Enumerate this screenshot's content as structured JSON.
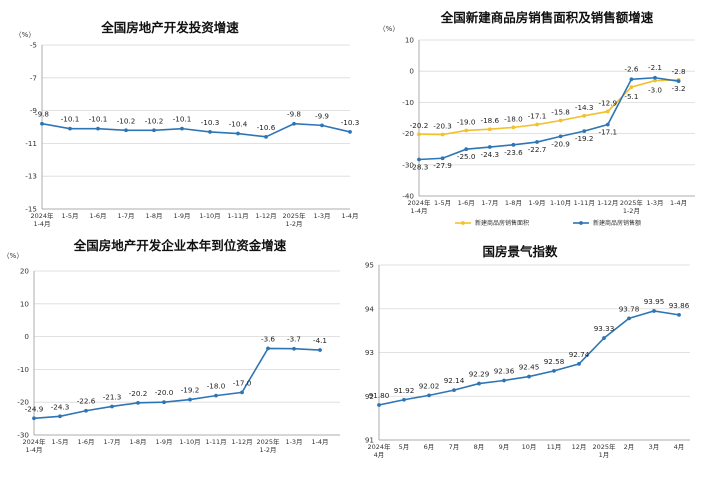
{
  "chart_data": [
    {
      "type": "line",
      "title": "全国房地产开发投资增速",
      "unit": "（%）",
      "categories": [
        [
          "2024年",
          "1-4月"
        ],
        [
          "1-5月"
        ],
        [
          "1-6月"
        ],
        [
          "1-7月"
        ],
        [
          "1-8月"
        ],
        [
          "1-9月"
        ],
        [
          "1-10月"
        ],
        [
          "1-11月"
        ],
        [
          "1-12月"
        ],
        [
          "2025年",
          "1-2月"
        ],
        [
          "1-3月"
        ],
        [
          "1-4月"
        ]
      ],
      "series": [
        {
          "values": [
            -9.8,
            -10.1,
            -10.1,
            -10.2,
            -10.2,
            -10.1,
            -10.3,
            -10.4,
            -10.6,
            -9.8,
            -9.9,
            -10.3
          ],
          "labels": [
            "-9.8",
            "-10.1",
            "-10.1",
            "-10.2",
            "-10.2",
            "-10.1",
            "-10.3",
            "-10.4",
            "-10.6",
            "-9.8",
            "-9.9",
            "-10.3"
          ],
          "color": "#2e75b6"
        }
      ],
      "yticks": [
        "-5",
        "-7",
        "-9",
        "-11",
        "-13",
        "-15"
      ],
      "ylim": [
        -15,
        -5
      ],
      "grid": true
    },
    {
      "type": "line",
      "title": "全国新建商品房销售面积及销售额增速",
      "unit": "（%）",
      "categories": [
        [
          "2024年",
          "1-4月"
        ],
        [
          "1-5月"
        ],
        [
          "1-6月"
        ],
        [
          "1-7月"
        ],
        [
          "1-8月"
        ],
        [
          "1-9月"
        ],
        [
          "1-10月"
        ],
        [
          "1-11月"
        ],
        [
          "1-12月"
        ],
        [
          "2025年",
          "1-2月"
        ],
        [
          "1-3月"
        ],
        [
          "1-4月"
        ]
      ],
      "series": [
        {
          "name": "新建商品房销售面积",
          "values": [
            -20.2,
            -20.3,
            -19.0,
            -18.6,
            -18.0,
            -17.1,
            -15.8,
            -14.3,
            -12.9,
            -5.1,
            -3.0,
            -2.8
          ],
          "labels": [
            "-20.2",
            "-20.3",
            "-19.0",
            "-18.6",
            "-18.0",
            "-17.1",
            "-15.8",
            "-14.3",
            "-12.9",
            "-5.1",
            "-3.0",
            "-2.8"
          ],
          "color": "#f2c12e"
        },
        {
          "name": "新建商品房销售额",
          "values": [
            -28.3,
            -27.9,
            -25.0,
            -24.3,
            -23.6,
            -22.7,
            -20.9,
            -19.2,
            -17.1,
            -2.6,
            -2.1,
            -3.2
          ],
          "labels": [
            "-28.3",
            "-27.9",
            "-25.0",
            "-24.3",
            "-23.6",
            "-22.7",
            "-20.9",
            "-19.2",
            "-17.1",
            "-2.6",
            "-2.1",
            "-3.2"
          ],
          "color": "#2e75b6"
        }
      ],
      "yticks": [
        "10",
        "0",
        "-10",
        "-20",
        "-30",
        "-40"
      ],
      "ylim": [
        -40,
        10
      ],
      "legend": "bottom",
      "grid": true
    },
    {
      "type": "line",
      "title": "全国房地产开发企业本年到位资金增速",
      "unit": "（%）",
      "categories": [
        [
          "2024年",
          "1-4月"
        ],
        [
          "1-5月"
        ],
        [
          "1-6月"
        ],
        [
          "1-7月"
        ],
        [
          "1-8月"
        ],
        [
          "1-9月"
        ],
        [
          "1-10月"
        ],
        [
          "1-11月"
        ],
        [
          "1-12月"
        ],
        [
          "2025年",
          "1-2月"
        ],
        [
          "1-3月"
        ],
        [
          "1-4月"
        ]
      ],
      "series": [
        {
          "values": [
            -24.9,
            -24.3,
            -22.6,
            -21.3,
            -20.2,
            -20.0,
            -19.2,
            -18.0,
            -17.0,
            -3.6,
            -3.7,
            -4.1
          ],
          "labels": [
            "-24.9",
            "-24.3",
            "-22.6",
            "-21.3",
            "-20.2",
            "-20.0",
            "-19.2",
            "-18.0",
            "-17.0",
            "-3.6",
            "-3.7",
            "-4.1"
          ],
          "color": "#2e75b6"
        }
      ],
      "yticks": [
        "20",
        "10",
        "0",
        "-10",
        "-20",
        "-30"
      ],
      "ylim": [
        -30,
        20
      ],
      "grid": true
    },
    {
      "type": "line",
      "title": "国房景气指数",
      "categories": [
        [
          "2024年",
          "4月"
        ],
        [
          "5月"
        ],
        [
          "6月"
        ],
        [
          "7月"
        ],
        [
          "8月"
        ],
        [
          "9月"
        ],
        [
          "10月"
        ],
        [
          "11月"
        ],
        [
          "12月"
        ],
        [
          "2025年",
          "1月"
        ],
        [
          "2月"
        ],
        [
          "3月"
        ],
        [
          "4月"
        ]
      ],
      "series": [
        {
          "values": [
            91.8,
            91.92,
            92.02,
            92.14,
            92.29,
            92.36,
            92.45,
            92.58,
            92.74,
            93.33,
            93.78,
            93.95,
            93.86
          ],
          "labels": [
            "91.80",
            "91.92",
            "92.02",
            "92.14",
            "92.29",
            "92.36",
            "92.45",
            "92.58",
            "92.74",
            "93.33",
            "93.78",
            "93.95",
            "93.86"
          ],
          "color": "#2e75b6"
        }
      ],
      "yticks": [
        "95",
        "94",
        "93",
        "92",
        "91"
      ],
      "ylim": [
        91,
        95
      ],
      "grid": true
    }
  ]
}
